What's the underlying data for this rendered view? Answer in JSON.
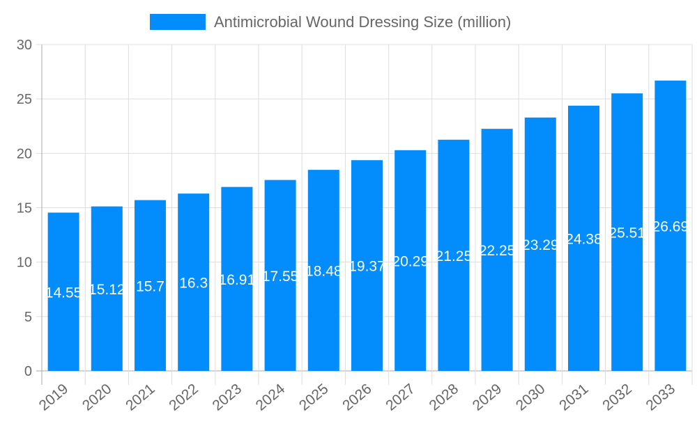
{
  "chart_data": {
    "type": "bar",
    "categories": [
      "2019",
      "2020",
      "2021",
      "2022",
      "2023",
      "2024",
      "2025",
      "2026",
      "2027",
      "2028",
      "2029",
      "2030",
      "2031",
      "2032",
      "2033"
    ],
    "series": [
      {
        "name": "Antimicrobial Wound Dressing Size (million)",
        "values": [
          14.55,
          15.12,
          15.7,
          16.3,
          16.91,
          17.55,
          18.48,
          19.37,
          20.29,
          21.25,
          22.25,
          23.29,
          24.38,
          25.51,
          26.69
        ],
        "labels": [
          "14.55",
          "15.12",
          "15.7",
          "16.3",
          "16.91",
          "17.55",
          "18.48",
          "19.37",
          "20.29",
          "21.25",
          "22.25",
          "23.29",
          "24.38",
          "25.51",
          "26.69"
        ],
        "color": "#038cfc"
      }
    ],
    "ylim": [
      0,
      30
    ],
    "yticks": [
      "0",
      "5",
      "10",
      "15",
      "20",
      "25",
      "30"
    ],
    "grid": true,
    "legend": "top",
    "xlabel": "",
    "ylabel": ""
  }
}
